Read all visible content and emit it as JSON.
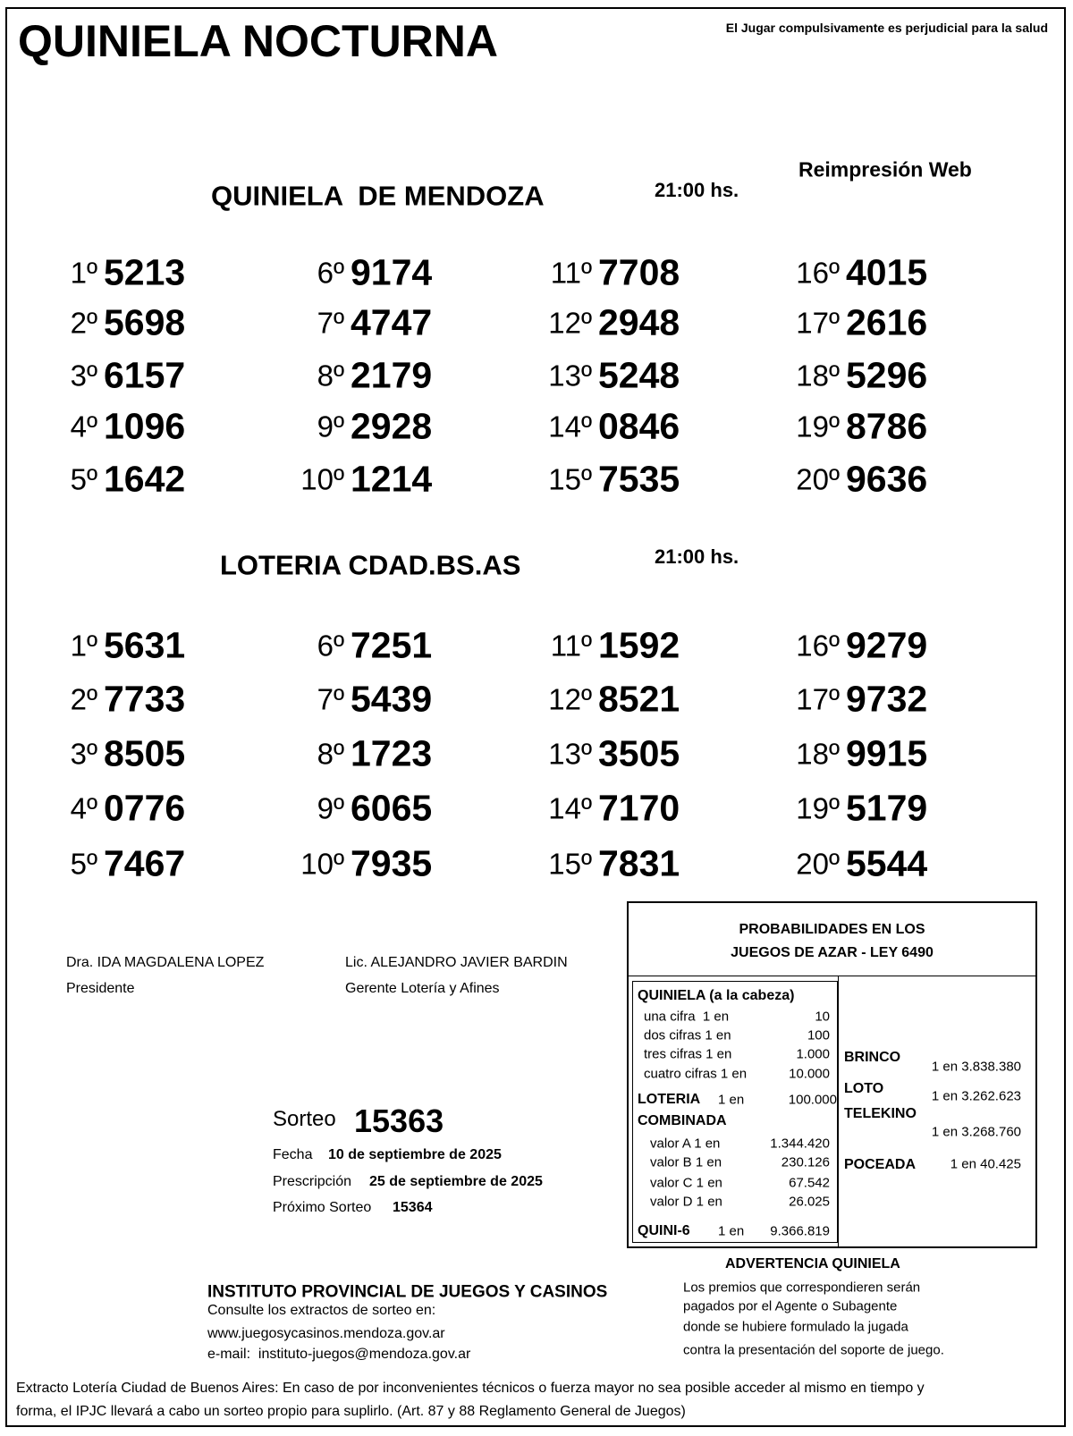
{
  "header": {
    "title": "QUINIELA NOCTURNA",
    "warning": "El Jugar compulsivamente es perjudicial para la salud",
    "reprint": "Reimpresión Web"
  },
  "draws": [
    {
      "name": "QUINIELA  DE MENDOZA",
      "time": "21:00 hs.",
      "results": [
        {
          "pos": "1º",
          "num": "5213"
        },
        {
          "pos": "2º",
          "num": "5698"
        },
        {
          "pos": "3º",
          "num": "6157"
        },
        {
          "pos": "4º",
          "num": "1096"
        },
        {
          "pos": "5º",
          "num": "1642"
        },
        {
          "pos": "6º",
          "num": "9174"
        },
        {
          "pos": "7º",
          "num": "4747"
        },
        {
          "pos": "8º",
          "num": "2179"
        },
        {
          "pos": "9º",
          "num": "2928"
        },
        {
          "pos": "10º",
          "num": "1214"
        },
        {
          "pos": "11º",
          "num": "7708"
        },
        {
          "pos": "12º",
          "num": "2948"
        },
        {
          "pos": "13º",
          "num": "5248"
        },
        {
          "pos": "14º",
          "num": "0846"
        },
        {
          "pos": "15º",
          "num": "7535"
        },
        {
          "pos": "16º",
          "num": "4015"
        },
        {
          "pos": "17º",
          "num": "2616"
        },
        {
          "pos": "18º",
          "num": "5296"
        },
        {
          "pos": "19º",
          "num": "8786"
        },
        {
          "pos": "20º",
          "num": "9636"
        }
      ]
    },
    {
      "name": "LOTERIA CDAD.BS.AS",
      "time": "21:00 hs.",
      "results": [
        {
          "pos": "1º",
          "num": "5631"
        },
        {
          "pos": "2º",
          "num": "7733"
        },
        {
          "pos": "3º",
          "num": "8505"
        },
        {
          "pos": "4º",
          "num": "0776"
        },
        {
          "pos": "5º",
          "num": "7467"
        },
        {
          "pos": "6º",
          "num": "7251"
        },
        {
          "pos": "7º",
          "num": "5439"
        },
        {
          "pos": "8º",
          "num": "1723"
        },
        {
          "pos": "9º",
          "num": "6065"
        },
        {
          "pos": "10º",
          "num": "7935"
        },
        {
          "pos": "11º",
          "num": "1592"
        },
        {
          "pos": "12º",
          "num": "8521"
        },
        {
          "pos": "13º",
          "num": "3505"
        },
        {
          "pos": "14º",
          "num": "7170"
        },
        {
          "pos": "15º",
          "num": "7831"
        },
        {
          "pos": "16º",
          "num": "9279"
        },
        {
          "pos": "17º",
          "num": "9732"
        },
        {
          "pos": "18º",
          "num": "9915"
        },
        {
          "pos": "19º",
          "num": "5179"
        },
        {
          "pos": "20º",
          "num": "5544"
        }
      ]
    }
  ],
  "signatures": [
    {
      "name": "Dra. IDA MAGDALENA LOPEZ",
      "role": "Presidente"
    },
    {
      "name": "Lic. ALEJANDRO JAVIER BARDIN",
      "role": "Gerente Lotería y Afines"
    }
  ],
  "sorteo": {
    "label": "Sorteo",
    "number": "15363",
    "fecha_label": "Fecha",
    "fecha": "10 de septiembre de 2025",
    "prescripcion_label": "Prescripción",
    "prescripcion": "25 de septiembre de 2025",
    "proximo_label": "Próximo Sorteo",
    "proximo": "15364"
  },
  "probabilities": {
    "title": [
      "PROBABILIDADES EN LOS",
      "JUEGOS DE AZAR - LEY 6490"
    ],
    "quiniela": {
      "heading": "QUINIELA (a la cabeza)",
      "rows": [
        [
          "una cifra  1 en",
          "10"
        ],
        [
          "dos cifras 1 en",
          "100"
        ],
        [
          "tres cifras 1 en",
          "1.000"
        ],
        [
          "cuatro cifras 1 en",
          "10.000"
        ]
      ]
    },
    "loteria": {
      "label": "LOTERIA",
      "odds": "1 en",
      "value": "100.000"
    },
    "combinada": {
      "heading": "COMBINADA",
      "rows": [
        [
          "valor A 1 en",
          "1.344.420"
        ],
        [
          "valor B 1 en",
          "230.126"
        ],
        [
          "valor C 1 en",
          "67.542"
        ],
        [
          "valor D 1 en",
          "26.025"
        ]
      ]
    },
    "quini6": {
      "label": "QUINI-6",
      "odds": "1 en",
      "value": "9.366.819"
    },
    "others": [
      {
        "label": "BRINCO",
        "odds": "1 en 3.838.380"
      },
      {
        "label": "LOTO",
        "odds": "1 en 3.262.623"
      },
      {
        "label": "TELEKINO",
        "odds": "1 en 3.268.760"
      },
      {
        "label": "POCEADA",
        "odds": "1 en 40.425"
      }
    ]
  },
  "institute": {
    "title": "INSTITUTO PROVINCIAL DE JUEGOS Y CASINOS",
    "lines": [
      "Consulte los extractos de sorteo en:",
      "www.juegosycasinos.mendoza.gov.ar",
      "e-mail:  instituto-juegos@mendoza.gov.ar"
    ]
  },
  "advertencia": {
    "title": "ADVERTENCIA QUINIELA",
    "lines": [
      "Los premios que correspondieren serán",
      "pagados por el Agente o Subagente",
      "donde se hubiere formulado la jugada",
      "contra la presentación del soporte de juego."
    ]
  },
  "footer": {
    "lines": [
      "Extracto Lotería Ciudad de Buenos Aires: En caso de por inconvenientes técnicos o fuerza mayor no sea posible acceder al mismo en tiempo y",
      "forma, el IPJC llevará a cabo un sorteo propio para suplirlo. (Art. 87 y 88 Reglamento General de Juegos)"
    ]
  }
}
